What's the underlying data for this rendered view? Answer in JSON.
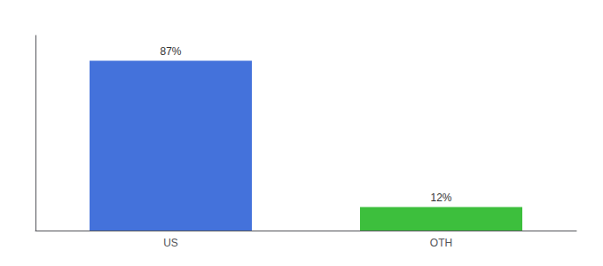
{
  "chart_data": {
    "type": "bar",
    "categories": [
      "US",
      "OTH"
    ],
    "values": [
      87,
      12
    ],
    "value_labels": [
      "87%",
      "12%"
    ],
    "colors": [
      "#4472db",
      "#3dbf3d"
    ],
    "ylim": [
      0,
      100
    ],
    "grid": false,
    "tick_labels": "x",
    "data_labels": true
  }
}
